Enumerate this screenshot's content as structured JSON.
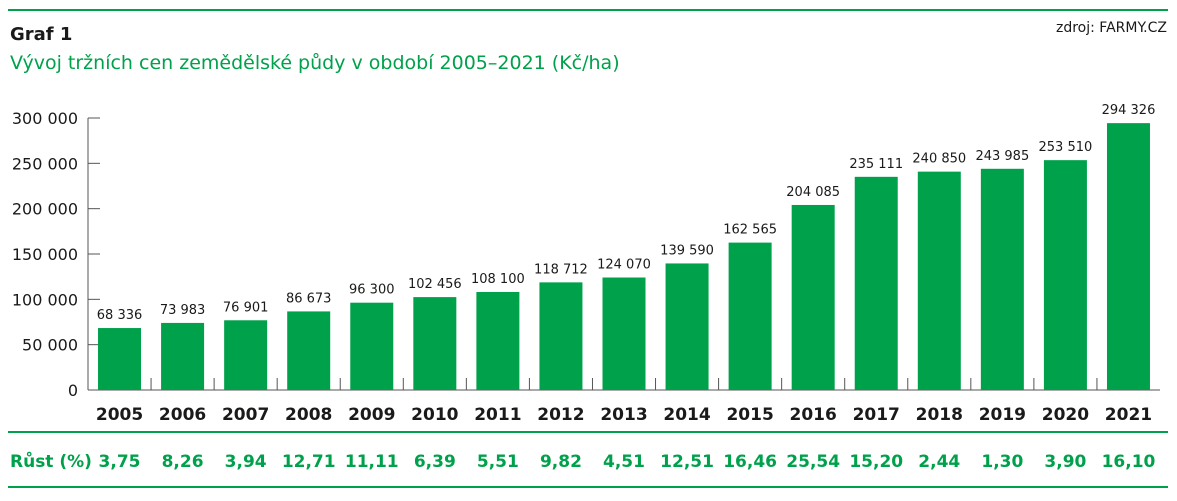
{
  "header": {
    "graf_label": "Graf 1",
    "title": "Vývoj tržních cen zemědělské půdy v období 2005–2021 (Kč/ha)",
    "source": "zdroj: FARMY.CZ"
  },
  "colors": {
    "accent": "#00a14b",
    "bar": "#00a14b",
    "text": "#1a1a1a",
    "axis": "#555555"
  },
  "chart_data": {
    "type": "bar",
    "title": "Vývoj tržních cen zemědělské půdy v období 2005–2021 (Kč/ha)",
    "categories": [
      "2005",
      "2006",
      "2007",
      "2008",
      "2009",
      "2010",
      "2011",
      "2012",
      "2013",
      "2014",
      "2015",
      "2016",
      "2017",
      "2018",
      "2019",
      "2020",
      "2021"
    ],
    "values": [
      68336,
      73983,
      76901,
      86673,
      96300,
      102456,
      108100,
      118712,
      124070,
      139590,
      162565,
      204085,
      235111,
      240850,
      243985,
      253510,
      294326
    ],
    "value_labels": [
      "68 336",
      "73 983",
      "76 901",
      "86 673",
      "96 300",
      "102 456",
      "108 100",
      "118 712",
      "124 070",
      "139 590",
      "162 565",
      "204 085",
      "235 111",
      "240 850",
      "243 985",
      "253 510",
      "294 326"
    ],
    "yticks": [
      0,
      50000,
      100000,
      150000,
      200000,
      250000,
      300000
    ],
    "ytick_labels": [
      "0",
      "50 000",
      "100 000",
      "150 000",
      "200 000",
      "250 000",
      "300 000"
    ],
    "ylim": [
      0,
      300000
    ],
    "grid": false,
    "xlabel": "",
    "ylabel": ""
  },
  "growth": {
    "label": "Růst (%)",
    "values": [
      "3,75",
      "8,26",
      "3,94",
      "12,71",
      "11,11",
      "6,39",
      "5,51",
      "9,82",
      "4,51",
      "12,51",
      "16,46",
      "25,54",
      "15,20",
      "2,44",
      "1,30",
      "3,90",
      "16,10"
    ]
  }
}
